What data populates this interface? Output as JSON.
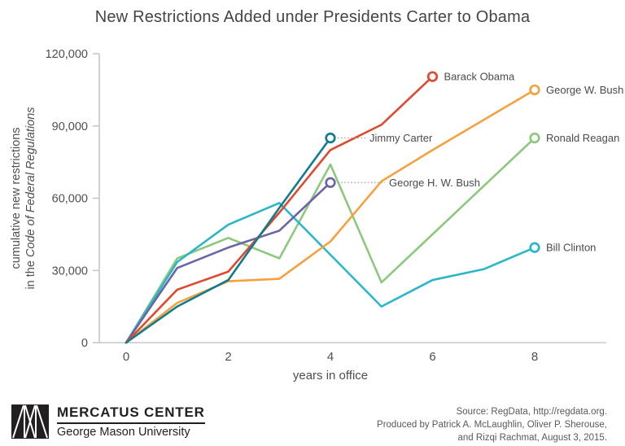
{
  "title": "New Restrictions Added under Presidents Carter to Obama",
  "chart_data": {
    "type": "line",
    "title": "New Restrictions Added under Presidents Carter to Obama",
    "xlabel": "years in office",
    "ylabel_line1": "cumulative new restrictions",
    "ylabel_line2_prefix": "in the ",
    "ylabel_line2_italic": "Code of Federal Regulations",
    "xlim": [
      0,
      8
    ],
    "ylim": [
      0,
      120000
    ],
    "xticks": [
      0,
      2,
      4,
      6,
      8
    ],
    "yticks": [
      0,
      30000,
      60000,
      90000,
      120000
    ],
    "ytick_labels": [
      "0",
      "30,000",
      "60,000",
      "90,000",
      "120,000"
    ],
    "grid": false,
    "legend": "direct line labels at series endpoints",
    "series": [
      {
        "name": "Ronald Reagan",
        "color": "#8dc87e",
        "label_mode": "right",
        "years": [
          0,
          1,
          2,
          3,
          4,
          5,
          6,
          7,
          8
        ],
        "values": [
          0,
          35000,
          43500,
          35000,
          74000,
          25000,
          45000,
          65000,
          85000
        ]
      },
      {
        "name": "Bill Clinton",
        "color": "#2cb7c9",
        "label_mode": "right",
        "years": [
          0,
          1,
          2,
          3,
          4,
          5,
          6,
          7,
          8
        ],
        "values": [
          0,
          33500,
          49000,
          58000,
          36500,
          15000,
          26000,
          30500,
          39500
        ]
      },
      {
        "name": "George H. W. Bush",
        "color": "#6c63a8",
        "label_mode": "leader",
        "leader_len": 58,
        "years": [
          0,
          1,
          2,
          3,
          4
        ],
        "values": [
          0,
          31000,
          39500,
          46500,
          66500
        ]
      },
      {
        "name": "George W. Bush",
        "color": "#f5a140",
        "label_mode": "right",
        "years": [
          0,
          1,
          2,
          3,
          4,
          5,
          6,
          7,
          8
        ],
        "values": [
          0,
          16500,
          25500,
          26500,
          42000,
          67000,
          80000,
          92500,
          105000
        ]
      },
      {
        "name": "Barack Obama",
        "color": "#df4a2e",
        "label_mode": "right",
        "years": [
          0,
          1,
          2,
          3,
          4,
          5,
          6
        ],
        "values": [
          0,
          22000,
          29500,
          54000,
          80000,
          90500,
          110500
        ]
      },
      {
        "name": "Jimmy Carter",
        "color": "#107c8d",
        "label_mode": "leader",
        "leader_len": 34,
        "years": [
          0,
          1,
          2,
          3,
          4
        ],
        "values": [
          0,
          15000,
          26000,
          56000,
          85000
        ]
      }
    ],
    "style": {
      "axis_color": "#c6c7c8",
      "tick_text_color": "#4f4f51",
      "label_text_color": "#4a4a4a",
      "leader_color": "#9b9b9b"
    }
  },
  "footer": {
    "logo": {
      "org": "MERCATUS CENTER",
      "university": "George Mason University"
    },
    "source_lines": [
      "Source: RegData, http://regdata.org.",
      "Produced by Patrick A. McLaughlin, Oliver P. Sherouse,",
      "and Rizqi Rachmat, August 3, 2015."
    ]
  }
}
